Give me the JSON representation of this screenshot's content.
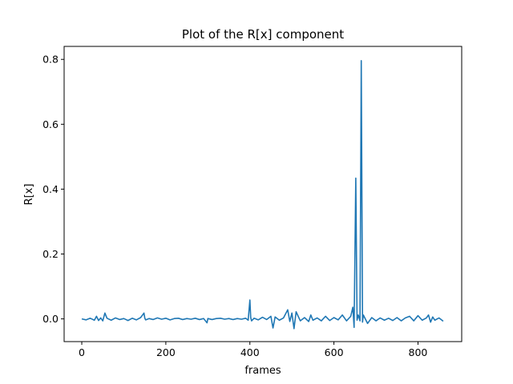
{
  "chart_data": {
    "type": "line",
    "title": "Plot of the R[x] component",
    "xlabel": "frames",
    "ylabel": "R[x]",
    "xlim": [
      -42,
      904
    ],
    "ylim": [
      -0.07,
      0.84
    ],
    "xticks": [
      0,
      200,
      400,
      600,
      800
    ],
    "xtick_labels": [
      "0",
      "200",
      "400",
      "600",
      "800"
    ],
    "yticks": [
      0.0,
      0.2,
      0.4,
      0.6,
      0.8
    ],
    "ytick_labels": [
      "0.0",
      "0.2",
      "0.4",
      "0.6",
      "0.8"
    ],
    "grid": false,
    "series_color": "#1f77b4",
    "series": [
      {
        "x": [
          0,
          10,
          20,
          30,
          35,
          40,
          45,
          50,
          55,
          60,
          70,
          80,
          90,
          100,
          110,
          120,
          130,
          140,
          148,
          150,
          152,
          160,
          170,
          180,
          190,
          200,
          210,
          220,
          230,
          240,
          250,
          260,
          270,
          280,
          290,
          298,
          300,
          310,
          320,
          330,
          340,
          350,
          360,
          370,
          380,
          390,
          396,
          400,
          402,
          404,
          410,
          420,
          430,
          440,
          450,
          455,
          460,
          470,
          480,
          490,
          495,
          500,
          505,
          510,
          520,
          530,
          540,
          545,
          550,
          560,
          570,
          580,
          590,
          600,
          610,
          620,
          630,
          640,
          645,
          648,
          652,
          655,
          658,
          662,
          665,
          668,
          670,
          680,
          690,
          700,
          710,
          720,
          730,
          740,
          750,
          760,
          770,
          780,
          790,
          800,
          810,
          820,
          825,
          830,
          835,
          840,
          850,
          860
        ],
        "y": [
          0.0,
          -0.003,
          0.002,
          -0.004,
          0.008,
          -0.005,
          0.003,
          -0.006,
          0.018,
          0.002,
          -0.004,
          0.003,
          -0.002,
          0.001,
          -0.005,
          0.002,
          -0.003,
          0.004,
          0.018,
          0.002,
          -0.003,
          0.001,
          -0.002,
          0.003,
          -0.001,
          0.002,
          -0.003,
          0.001,
          0.002,
          -0.002,
          0.001,
          -0.001,
          0.002,
          -0.002,
          0.001,
          -0.012,
          0.001,
          -0.002,
          0.001,
          0.002,
          -0.001,
          0.001,
          -0.002,
          0.001,
          -0.001,
          0.002,
          -0.004,
          0.058,
          0.004,
          -0.006,
          0.002,
          -0.003,
          0.005,
          -0.002,
          0.008,
          -0.028,
          0.006,
          -0.004,
          0.003,
          0.028,
          -0.008,
          0.018,
          -0.03,
          0.022,
          -0.006,
          0.004,
          -0.008,
          0.012,
          -0.004,
          0.003,
          -0.006,
          0.008,
          -0.005,
          0.004,
          -0.003,
          0.012,
          -0.006,
          0.008,
          0.036,
          -0.026,
          0.434,
          -0.004,
          0.012,
          -0.006,
          0.796,
          -0.01,
          0.012,
          -0.014,
          0.004,
          -0.006,
          0.003,
          -0.004,
          0.002,
          -0.005,
          0.004,
          -0.006,
          0.003,
          0.008,
          -0.006,
          0.01,
          -0.004,
          0.003,
          0.012,
          -0.01,
          0.006,
          -0.004,
          0.003,
          -0.007
        ]
      }
    ]
  }
}
